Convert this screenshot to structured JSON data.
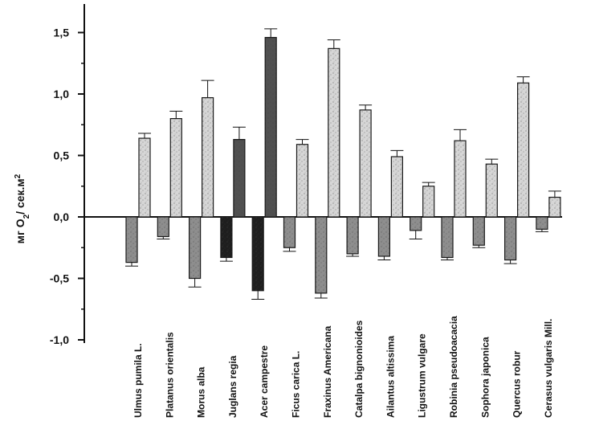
{
  "chart_data": {
    "type": "bar",
    "ylabel": "мг O",
    "ylabel_sub": "2",
    "ylabel_rest": "/ сек.м",
    "ylabel_sup": "2",
    "ylim": [
      -1.0,
      1.75
    ],
    "yticks": [
      {
        "value": 1.5,
        "label": "1,5"
      },
      {
        "value": 1.0,
        "label": "1,0"
      },
      {
        "value": 0.5,
        "label": "0,5"
      },
      {
        "value": 0.0,
        "label": "0,0"
      },
      {
        "value": -0.5,
        "label": "-0,5"
      },
      {
        "value": -1.0,
        "label": "-1,0"
      }
    ],
    "grid": false,
    "categories": [
      "Ulmus pumila L.",
      "Platanus orientalis",
      "Morus alba",
      "Juglans regia",
      "Acer campestre",
      "Ficus carica L.",
      "Fraxinus Americana",
      "Catalpa bignonioides",
      "Ailantus altissima",
      "Ligustrum vulgare",
      "Robinia pseudoacacia",
      "Sophora japonica",
      "Quercus robur",
      "Cerasus vulgaris Mill."
    ],
    "series": [
      {
        "values": [
          -0.37,
          -0.16,
          -0.5,
          -0.33,
          -0.6,
          -0.25,
          -0.62,
          -0.3,
          -0.32,
          -0.11,
          -0.33,
          -0.23,
          -0.35,
          -0.1
        ],
        "errors": [
          0.03,
          0.02,
          0.07,
          0.03,
          0.07,
          0.03,
          0.04,
          0.02,
          0.03,
          0.07,
          0.02,
          0.02,
          0.03,
          0.02
        ]
      },
      {
        "values": [
          0.64,
          0.8,
          0.97,
          0.63,
          1.46,
          0.59,
          1.37,
          0.87,
          0.49,
          0.25,
          0.62,
          0.43,
          1.09,
          0.16
        ],
        "errors": [
          0.04,
          0.06,
          0.14,
          0.1,
          0.07,
          0.04,
          0.07,
          0.04,
          0.05,
          0.03,
          0.09,
          0.04,
          0.05,
          0.05
        ]
      }
    ],
    "colors": {
      "neg_fill": "#8e8e8e",
      "pos_fill": "#d6d6d6",
      "dark_fill": "#1e1e1e",
      "dark_pos_fill": "#505050",
      "stroke": "#1a1a1a"
    },
    "dark_categories": [
      "Juglans regia",
      "Acer campestre"
    ]
  }
}
